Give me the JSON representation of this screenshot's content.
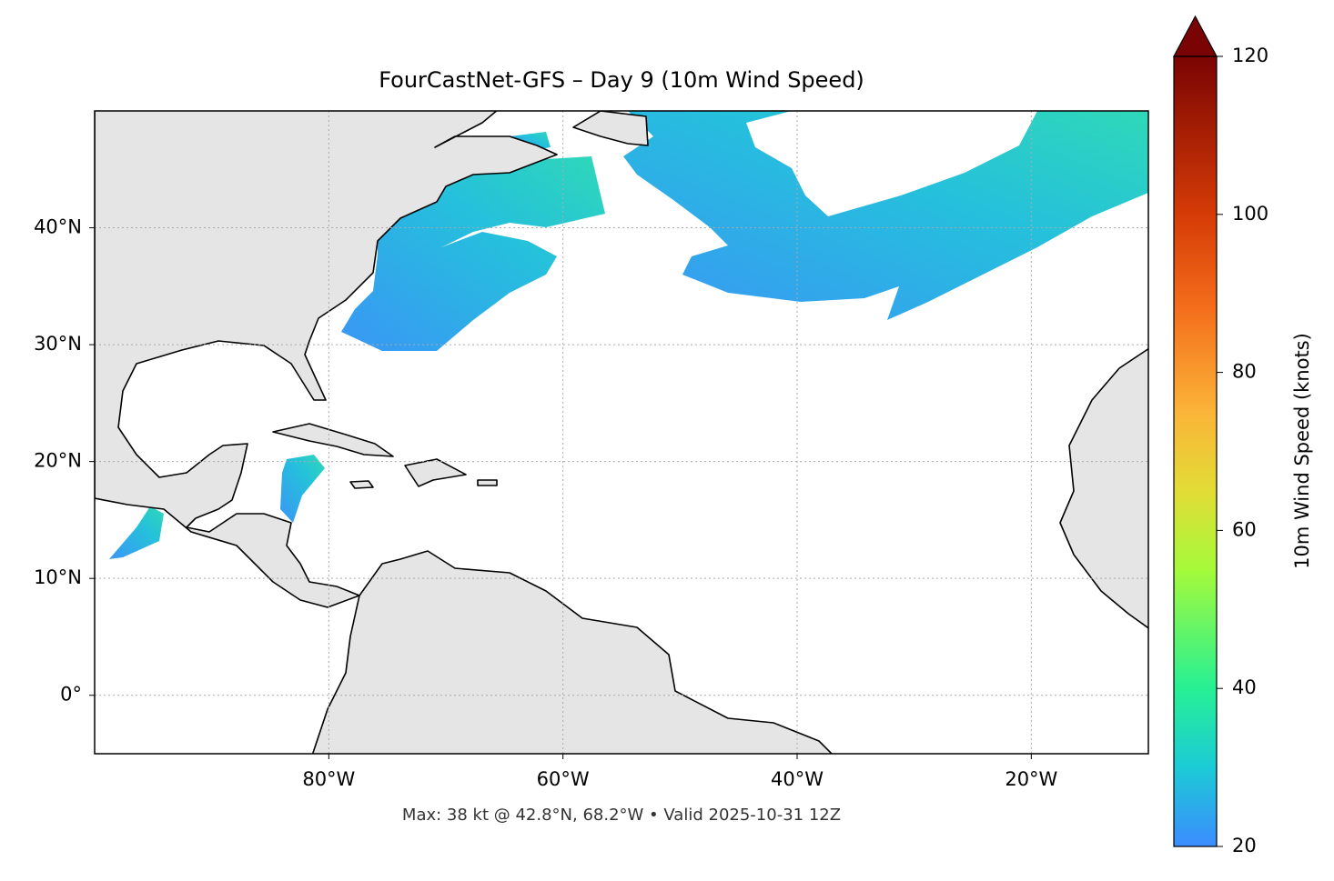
{
  "title": "FourCastNet-GFS – Day 9 (10m Wind Speed)",
  "footnote": "Max: 38 kt @ 42.8°N, 68.2°W • Valid 2025-10-31 12Z",
  "map": {
    "lonlim": [
      -100,
      -10
    ],
    "latlim": [
      -5,
      50
    ],
    "lon_ticks": [
      {
        "value": -80,
        "label": "80°W"
      },
      {
        "value": -60,
        "label": "60°W"
      },
      {
        "value": -40,
        "label": "40°W"
      },
      {
        "value": -20,
        "label": "20°W"
      }
    ],
    "lat_ticks": [
      {
        "value": 0,
        "label": "0°"
      },
      {
        "value": 10,
        "label": "10°N"
      },
      {
        "value": 20,
        "label": "20°N"
      },
      {
        "value": 30,
        "label": "30°N"
      },
      {
        "value": 40,
        "label": "40°N"
      }
    ],
    "grid": true
  },
  "colorbar": {
    "label": "10m Wind Speed (knots)",
    "lim": [
      20,
      120
    ],
    "ticks": [
      20,
      40,
      60,
      80,
      100,
      120
    ]
  }
}
